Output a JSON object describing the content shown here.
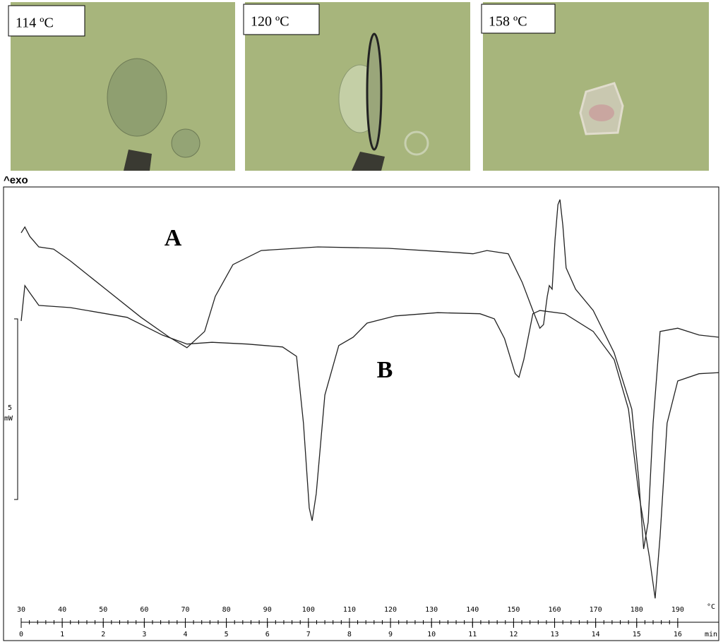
{
  "micrographs": {
    "labels": [
      "114 ºC",
      "120 ºC",
      "158 ºC"
    ]
  },
  "chart_data": {
    "type": "line",
    "ylabel_top": "^exo",
    "xlabel": "°C",
    "x2label": "min",
    "xlim": [
      30,
      200
    ],
    "xticks": [
      30,
      40,
      50,
      60,
      70,
      80,
      90,
      100,
      110,
      120,
      130,
      140,
      150,
      160,
      170,
      180,
      190
    ],
    "x2lim": [
      0,
      17
    ],
    "x2ticks": [
      0,
      1,
      2,
      3,
      4,
      5,
      6,
      7,
      8,
      9,
      10,
      11,
      12,
      13,
      14,
      15,
      16
    ],
    "ylim": [
      0,
      11.6
    ],
    "scale_bar": {
      "value": 5,
      "unit": "mW"
    },
    "series": [
      {
        "name": "A",
        "color": "#222222",
        "x": [
          30.0,
          30.9,
          32.1,
          34.3,
          37.9,
          42.0,
          50.6,
          59.2,
          66.1,
          70.4,
          74.7,
          77.3,
          81.6,
          88.5,
          102.3,
          119.5,
          136.7,
          140.1,
          143.5,
          148.7,
          152.1,
          154.7,
          156.4,
          157.3,
          158.2,
          158.7,
          159.4,
          160.1,
          160.8,
          161.3,
          162.0,
          162.8,
          165.1,
          169.4,
          174.5,
          178.8,
          180.5,
          181.7,
          182.8,
          184.0,
          185.7,
          190.0,
          195.2,
          200.0
        ],
        "values": [
          10.35,
          10.51,
          10.25,
          9.96,
          9.9,
          9.57,
          8.79,
          8.01,
          7.46,
          7.17,
          7.62,
          8.59,
          9.47,
          9.86,
          9.96,
          9.92,
          9.8,
          9.77,
          9.86,
          9.77,
          8.98,
          8.2,
          7.71,
          7.81,
          8.59,
          8.89,
          8.79,
          10.16,
          11.13,
          11.27,
          10.55,
          9.38,
          8.79,
          8.2,
          7.03,
          5.47,
          3.52,
          1.6,
          2.34,
          5.08,
          7.62,
          7.71,
          7.52,
          7.46
        ]
      },
      {
        "name": "B",
        "color": "#222222",
        "x": [
          30.0,
          30.9,
          32.1,
          34.3,
          42.0,
          55.8,
          64.4,
          70.4,
          76.5,
          85.1,
          93.7,
          97.1,
          98.8,
          100.2,
          100.9,
          101.9,
          104.0,
          107.4,
          110.9,
          114.3,
          121.2,
          131.5,
          141.8,
          145.3,
          147.8,
          150.4,
          151.3,
          152.5,
          154.7,
          156.4,
          162.5,
          169.4,
          174.5,
          178.0,
          180.5,
          183.1,
          184.5,
          185.7,
          187.4,
          190.0,
          195.2,
          200.0
        ],
        "values": [
          7.91,
          8.89,
          8.69,
          8.34,
          8.28,
          8.01,
          7.52,
          7.27,
          7.32,
          7.27,
          7.19,
          6.93,
          5.08,
          2.73,
          2.38,
          3.13,
          5.86,
          7.23,
          7.46,
          7.85,
          8.05,
          8.14,
          8.11,
          7.97,
          7.42,
          6.45,
          6.35,
          6.84,
          8.11,
          8.2,
          8.11,
          7.62,
          6.84,
          5.47,
          3.13,
          1.37,
          0.23,
          1.95,
          5.08,
          6.25,
          6.45,
          6.48
        ]
      }
    ]
  }
}
